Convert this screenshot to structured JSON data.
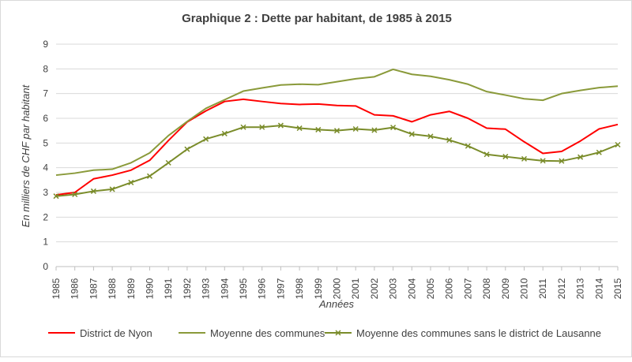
{
  "chart_data": {
    "type": "line",
    "title": "Graphique 2 : Dette par habitant, de 1985 à 2015",
    "xlabel": "Années",
    "ylabel": "En milliers de CHF par habitant",
    "ylim": [
      0,
      9
    ],
    "yticks": [
      "0",
      "1",
      "2",
      "3",
      "4",
      "5",
      "6",
      "7",
      "8",
      "9"
    ],
    "grid": true,
    "legend": "bottom",
    "categories": [
      "1985",
      "1986",
      "1987",
      "1988",
      "1989",
      "1990",
      "1991",
      "1992",
      "1993",
      "1994",
      "1995",
      "1996",
      "1997",
      "1998",
      "1999",
      "2000",
      "2001",
      "2002",
      "2003",
      "2004",
      "2005",
      "2006",
      "2007",
      "2008",
      "2009",
      "2010",
      "2011",
      "2012",
      "2013",
      "2014",
      "2015"
    ],
    "series": [
      {
        "name": "District de Nyon",
        "color": "#ff0000",
        "marker": "none",
        "values": [
          2.9,
          3.0,
          3.55,
          3.7,
          3.9,
          4.3,
          5.1,
          5.85,
          6.3,
          6.68,
          6.77,
          6.68,
          6.6,
          6.56,
          6.58,
          6.52,
          6.5,
          6.14,
          6.1,
          5.86,
          6.14,
          6.28,
          6.0,
          5.6,
          5.56,
          5.05,
          4.58,
          4.66,
          5.08,
          5.57,
          5.75
        ]
      },
      {
        "name": "Moyenne des communes",
        "color": "#8a9a3a",
        "marker": "none",
        "values": [
          3.7,
          3.78,
          3.9,
          3.94,
          4.2,
          4.6,
          5.3,
          5.87,
          6.4,
          6.75,
          7.1,
          7.23,
          7.35,
          7.38,
          7.36,
          7.48,
          7.6,
          7.68,
          7.98,
          7.78,
          7.7,
          7.56,
          7.38,
          7.08,
          6.94,
          6.79,
          6.73,
          7.0,
          7.13,
          7.24,
          7.3
        ]
      },
      {
        "name": "Moyenne des communes sans le district de Lausanne",
        "color": "#7a8c2a",
        "marker": "x",
        "values": [
          2.85,
          2.92,
          3.05,
          3.13,
          3.4,
          3.66,
          4.2,
          4.75,
          5.16,
          5.38,
          5.64,
          5.64,
          5.71,
          5.6,
          5.54,
          5.5,
          5.57,
          5.52,
          5.63,
          5.36,
          5.27,
          5.12,
          4.88,
          4.54,
          4.45,
          4.36,
          4.28,
          4.27,
          4.43,
          4.62,
          4.93
        ]
      }
    ]
  }
}
